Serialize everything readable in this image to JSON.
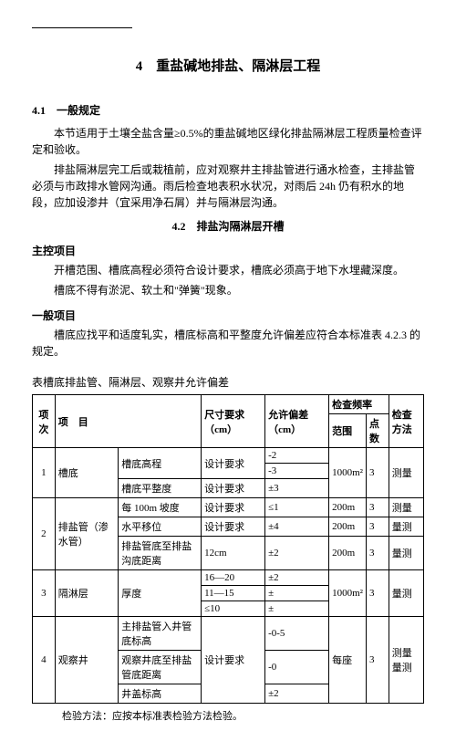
{
  "title": "4　重盐碱地排盐、隔淋层工程",
  "section41": {
    "heading": "4.1　一般规定",
    "p1": "本节适用于土壤全盐含量≥0.5%的重盐碱地区绿化排盐隔淋层工程质量检查评定和验收。",
    "p2": "排盐隔淋层完工后或栽植前，应对观察井主排盐管进行通水检查，主排盐管必须与市政排水管网沟通。雨后检查地表积水状况，对雨后 24h 仍有积水的地段，应加设渗井（宜采用净石屑）并与隔淋层沟通。"
  },
  "section42": {
    "heading": "4.2　排盐沟隔淋层开槽",
    "zhukong": "主控项目",
    "p3": "开槽范围、槽底高程必须符合设计要求，槽底必须高于地下水埋藏深度。",
    "p4": "槽底不得有淤泥、软土和\"弹簧\"现象。",
    "yiban": "一般项目",
    "p5": "槽底应找平和适度轧实，槽底标高和平整度允许偏差应符合本标准表 4.2.3 的规定。"
  },
  "table": {
    "caption": "表槽底排盐管、隔淋层、观察井允许偏差",
    "headers": {
      "h1": "项次",
      "h2": "项　目",
      "h3": "尺寸要求（cm）",
      "h4": "允许偏差（cm）",
      "h5": "检查频率",
      "h5a": "范围",
      "h5b": "点数",
      "h6": "检查方法"
    },
    "rows": {
      "r1": {
        "no": "1",
        "item": "槽底",
        "sub1": "槽底高程",
        "req1": "设计要求",
        "tol1a": "-2",
        "tol1b": "-3",
        "range1": "1000m²",
        "pts1": "3",
        "method1": "测量",
        "sub2": "槽底平整度",
        "req2": "设计要求",
        "tol2": "±3"
      },
      "r2": {
        "no": "2",
        "item": "排盐管（渗水管）",
        "sub1": "每 100m 坡度",
        "req1": "设计要求",
        "tol1": "≤1",
        "range1": "200m",
        "pts1": "3",
        "method1": "测量",
        "sub2": "水平移位",
        "req2": "设计要求",
        "tol2": "±4",
        "range2": "200m",
        "pts2": "3",
        "method2": "量测",
        "sub3": "排盐管底至排盐沟底距离",
        "req3": "12cm",
        "tol3": "±2",
        "range3": "200m",
        "pts3": "3",
        "method3": "量测"
      },
      "r3": {
        "no": "3",
        "item": "隔淋层",
        "sub": "厚度",
        "req1": "16—20",
        "tol1": "±2",
        "req2": "11—15",
        "tol2": "±",
        "req3": "≤10",
        "tol3": "±",
        "range": "1000m²",
        "pts": "3",
        "method": "量测"
      },
      "r4": {
        "no": "4",
        "item": "观察井",
        "sub1": "主排盐管入井管底标高",
        "req1": "设计要求",
        "tol1": "-0-5",
        "tol2": "-0",
        "tol3": "±2",
        "sub2": "观察井底至排盐管底距离",
        "sub3": "井盖标高",
        "range": "每座",
        "pts": "3",
        "method": "测量量测"
      }
    },
    "footnote": "检验方法：应按本标准表检验方法检验。"
  }
}
